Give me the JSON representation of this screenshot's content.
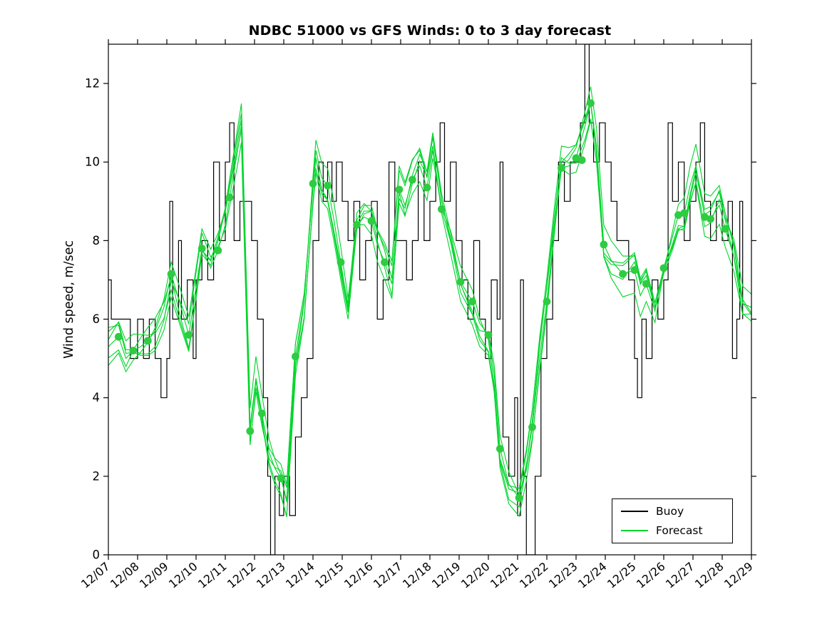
{
  "title": "NDBC 51000 vs GFS Winds: 0 to 3 day forecast",
  "chart_data": {
    "type": "line",
    "title": "NDBC 51000 vs GFS Winds: 0 to 3 day forecast",
    "xlabel": "",
    "ylabel": "Wind speed, m/sec",
    "ylim": [
      0,
      13
    ],
    "yticks": [
      0,
      2,
      4,
      6,
      8,
      10,
      12
    ],
    "x_domain": [
      0,
      22
    ],
    "x_tick_labels": [
      "12/07",
      "12/08",
      "12/09",
      "12/10",
      "12/11",
      "12/12",
      "12/13",
      "12/14",
      "12/15",
      "12/16",
      "12/17",
      "12/18",
      "12/19",
      "12/20",
      "12/21",
      "12/22",
      "12/23",
      "12/24",
      "12/25",
      "12/26",
      "12/27",
      "12/28",
      "12/29"
    ],
    "grid": false,
    "colors": {
      "buoy": "#000000",
      "forecast_line": "#00d42a",
      "forecast_marker": "#2ecc40",
      "background": "#ffffff",
      "axis": "#000000"
    },
    "legend": {
      "position": "bottom-right",
      "entries": [
        {
          "label": "Buoy",
          "color": "#000000"
        },
        {
          "label": "Forecast",
          "color": "#00d42a"
        }
      ]
    },
    "buoy": {
      "style": "step",
      "x": [
        0,
        0.1,
        0.5,
        0.75,
        1.0,
        1.2,
        1.4,
        1.6,
        1.8,
        2.0,
        2.1,
        2.2,
        2.4,
        2.5,
        2.7,
        2.9,
        3.0,
        3.2,
        3.4,
        3.6,
        3.8,
        4.0,
        4.15,
        4.3,
        4.5,
        4.7,
        4.9,
        5.1,
        5.3,
        5.45,
        5.55,
        5.7,
        5.85,
        6.0,
        6.2,
        6.4,
        6.6,
        6.8,
        7.0,
        7.2,
        7.35,
        7.5,
        7.65,
        7.8,
        8.0,
        8.2,
        8.4,
        8.6,
        8.8,
        9.0,
        9.2,
        9.4,
        9.6,
        9.8,
        10.0,
        10.2,
        10.4,
        10.6,
        10.8,
        11.0,
        11.2,
        11.35,
        11.5,
        11.7,
        11.9,
        12.1,
        12.3,
        12.5,
        12.7,
        12.9,
        13.1,
        13.3,
        13.4,
        13.5,
        13.7,
        13.9,
        14.0,
        14.1,
        14.2,
        14.3,
        14.45,
        14.6,
        14.8,
        15.0,
        15.2,
        15.4,
        15.6,
        15.8,
        16.0,
        16.15,
        16.3,
        16.45,
        16.6,
        16.8,
        17.0,
        17.2,
        17.4,
        17.6,
        17.8,
        18.0,
        18.1,
        18.25,
        18.4,
        18.6,
        18.8,
        19.0,
        19.15,
        19.3,
        19.5,
        19.7,
        19.9,
        20.1,
        20.25,
        20.4,
        20.6,
        20.8,
        21.0,
        21.2,
        21.35,
        21.5,
        21.6,
        21.7
      ],
      "y": [
        7,
        6,
        6,
        5,
        6,
        5,
        6,
        5,
        4,
        5,
        9,
        6,
        8,
        6,
        7,
        5,
        7,
        8,
        7,
        10,
        8,
        10,
        11,
        8,
        9,
        9,
        8,
        6,
        4,
        2,
        0,
        2,
        1,
        2,
        1,
        3,
        4,
        5,
        8,
        10,
        9,
        10,
        9,
        10,
        9,
        8,
        9,
        7,
        8,
        9,
        6,
        7,
        10,
        8,
        8,
        7,
        8,
        10,
        8,
        9,
        10,
        11,
        9,
        10,
        8,
        7,
        6,
        8,
        6,
        5,
        7,
        6,
        10,
        3,
        2,
        4,
        1,
        7,
        2,
        0,
        0,
        2,
        5,
        6,
        8,
        10,
        9,
        10,
        10,
        11,
        13,
        11,
        10,
        11,
        10,
        9,
        8,
        8,
        7,
        5,
        4,
        6,
        5,
        7,
        6,
        7,
        11,
        9,
        10,
        8,
        9,
        10,
        11,
        9,
        8,
        9,
        8,
        9,
        5,
        6,
        9,
        6
      ]
    },
    "forecast": {
      "x": [
        0,
        0.35,
        0.6,
        0.85,
        1.1,
        1.35,
        1.6,
        1.9,
        2.15,
        2.45,
        2.75,
        3.0,
        3.2,
        3.5,
        3.75,
        4.0,
        4.15,
        4.4,
        4.55,
        4.7,
        4.85,
        5.05,
        5.25,
        5.5,
        5.7,
        5.9,
        6.1,
        6.4,
        6.7,
        7.0,
        7.1,
        7.3,
        7.5,
        7.7,
        7.95,
        8.2,
        8.5,
        8.75,
        9.0,
        9.2,
        9.45,
        9.7,
        9.95,
        10.15,
        10.4,
        10.65,
        10.9,
        11.1,
        11.4,
        11.7,
        12.05,
        12.45,
        12.7,
        13.0,
        13.2,
        13.4,
        13.7,
        14.05,
        14.3,
        14.5,
        14.75,
        15.0,
        15.25,
        15.5,
        15.75,
        16.0,
        16.3,
        16.5,
        16.7,
        16.95,
        17.2,
        17.6,
        18.0,
        18.2,
        18.4,
        18.7,
        19.0,
        19.3,
        19.5,
        19.7,
        19.9,
        20.1,
        20.4,
        20.6,
        20.9,
        21.1,
        21.4,
        21.7,
        22.0,
        22.2
      ],
      "y": [
        5.3,
        5.55,
        5.0,
        5.2,
        5.3,
        5.45,
        5.7,
        6.3,
        7.15,
        6.4,
        5.6,
        6.8,
        7.8,
        7.3,
        7.75,
        8.4,
        9.1,
        10.2,
        10.9,
        7.0,
        3.15,
        4.5,
        3.6,
        2.6,
        2.2,
        1.95,
        1.4,
        5.05,
        6.5,
        9.45,
        10.3,
        9.6,
        9.4,
        8.6,
        7.45,
        6.3,
        8.4,
        8.6,
        8.5,
        7.9,
        7.45,
        6.9,
        9.3,
        8.9,
        9.55,
        9.9,
        9.35,
        10.3,
        8.8,
        8.0,
        6.95,
        6.45,
        5.9,
        5.6,
        4.6,
        2.7,
        1.8,
        1.45,
        2.3,
        3.25,
        5.0,
        6.45,
        8.2,
        9.85,
        9.9,
        10.1,
        10.9,
        11.5,
        10.4,
        7.9,
        7.5,
        7.15,
        7.25,
        6.6,
        6.9,
        6.2,
        7.3,
        8.1,
        8.65,
        8.7,
        9.4,
        9.9,
        8.6,
        8.55,
        8.9,
        8.3,
        7.6,
        6.4,
        6.3,
        7.0
      ],
      "line_variants": [
        {
          "amp": 0.0,
          "freq": 1.0,
          "phase": 0.0
        },
        {
          "amp": 0.45,
          "freq": 1.8,
          "phase": 0.4
        },
        {
          "amp": 0.6,
          "freq": 1.2,
          "phase": 2.2
        },
        {
          "amp": 0.35,
          "freq": 2.6,
          "phase": 4.1
        },
        {
          "amp": 0.5,
          "freq": 0.9,
          "phase": 5.0
        },
        {
          "amp": 0.4,
          "freq": 2.1,
          "phase": 1.3
        }
      ],
      "markers": {
        "x": [
          0.35,
          0.85,
          1.35,
          2.15,
          2.75,
          3.2,
          3.75,
          4.15,
          4.85,
          5.25,
          5.9,
          6.4,
          7.0,
          7.5,
          7.95,
          8.5,
          9.0,
          9.45,
          9.95,
          10.4,
          10.9,
          11.4,
          12.05,
          12.45,
          13.0,
          13.4,
          14.05,
          14.5,
          15.0,
          15.5,
          16.0,
          16.2,
          16.5,
          16.95,
          17.6,
          18.0,
          18.4,
          19.0,
          19.5,
          19.7,
          20.4,
          20.6,
          21.1
        ],
        "y": [
          5.55,
          5.2,
          5.45,
          7.15,
          5.6,
          7.8,
          7.75,
          9.1,
          3.15,
          3.6,
          1.95,
          5.05,
          9.45,
          9.4,
          7.45,
          8.4,
          8.5,
          7.45,
          9.3,
          9.55,
          9.35,
          8.8,
          6.95,
          6.45,
          5.6,
          2.7,
          1.45,
          3.25,
          6.45,
          9.85,
          10.1,
          10.05,
          11.5,
          7.9,
          7.15,
          7.25,
          6.9,
          7.3,
          8.65,
          8.7,
          8.6,
          8.55,
          8.3
        ]
      }
    }
  }
}
